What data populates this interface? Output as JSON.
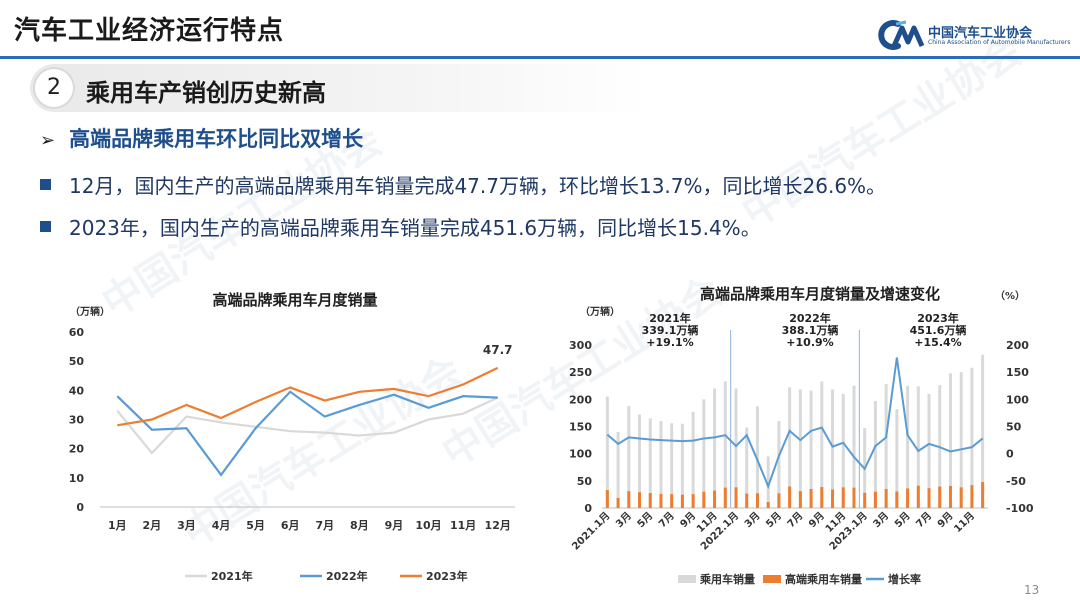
{
  "header": {
    "title": "汽车工业经济运行特点"
  },
  "logo": {
    "name_cn": "中国汽车工业协会",
    "name_en": "China Association of Automobile Manufacturers"
  },
  "section": {
    "number": "2",
    "title": "乘用车产销创历史新高"
  },
  "subheading": "高端品牌乘用车环比同比双增长",
  "bullets": [
    "12月，国内生产的高端品牌乘用车销量完成47.7万辆，环比增长13.7%，同比增长26.6%。",
    "2023年，国内生产的高端品牌乘用车销量完成451.6万辆，同比增长15.4%。"
  ],
  "watermark": "中国汽车工业协会",
  "page_number": "13",
  "colors": {
    "s2021": "#d9d9d9",
    "s2022": "#5b9bd5",
    "s2023": "#ed7d31",
    "total_bar": "#d9d9d9",
    "premium_bar": "#ed7d31",
    "growth_line": "#5b9bd5"
  },
  "chart_data": [
    {
      "type": "line",
      "title": "高端品牌乘用车月度销量",
      "ylabel": "（万辆）",
      "ylim": [
        0,
        60
      ],
      "yticks": [
        0,
        10,
        20,
        30,
        40,
        50,
        60
      ],
      "categories": [
        "1月",
        "2月",
        "3月",
        "4月",
        "5月",
        "6月",
        "7月",
        "8月",
        "9月",
        "10月",
        "11月",
        "12月"
      ],
      "series": [
        {
          "name": "2021年",
          "values": [
            33,
            18.5,
            31,
            29,
            27.5,
            26,
            25.5,
            24.5,
            25.5,
            30,
            32,
            37.5
          ]
        },
        {
          "name": "2022年",
          "values": [
            38,
            26.5,
            27,
            11,
            27,
            39.5,
            31,
            35,
            38.5,
            34,
            38,
            37.5
          ]
        },
        {
          "name": "2023年",
          "values": [
            28,
            30,
            35,
            30.5,
            36,
            41,
            36.5,
            39.5,
            40.5,
            38,
            42,
            47.7
          ]
        }
      ],
      "data_labels": [
        {
          "series": "2023年",
          "category": "12月",
          "text": "47.7"
        }
      ],
      "legend": "bottom"
    },
    {
      "type": "bar",
      "title": "高端品牌乘用车月度销量及增速变化",
      "ylabel": "（万辆）",
      "y2label": "（%）",
      "ylim": [
        0,
        300
      ],
      "yticks": [
        0,
        50,
        100,
        150,
        200,
        250,
        300
      ],
      "y2lim": [
        -100,
        200
      ],
      "y2ticks": [
        -100,
        -50,
        0,
        50,
        100,
        150,
        200
      ],
      "tick_labels": [
        "2021.1月",
        "3月",
        "5月",
        "7月",
        "9月",
        "11月",
        "2022.1月",
        "3月",
        "5月",
        "7月",
        "9月",
        "11月",
        "2023.1月",
        "3月",
        "5月",
        "7月",
        "9月",
        "11月"
      ],
      "x": [
        "2021.1",
        "2021.2",
        "2021.3",
        "2021.4",
        "2021.5",
        "2021.6",
        "2021.7",
        "2021.8",
        "2021.9",
        "2021.10",
        "2021.11",
        "2021.12",
        "2022.1",
        "2022.2",
        "2022.3",
        "2022.4",
        "2022.5",
        "2022.6",
        "2022.7",
        "2022.8",
        "2022.9",
        "2022.10",
        "2022.11",
        "2022.12",
        "2023.1",
        "2023.2",
        "2023.3",
        "2023.4",
        "2023.5",
        "2023.6",
        "2023.7",
        "2023.8",
        "2023.9",
        "2023.10",
        "2023.11",
        "2023.12"
      ],
      "series": [
        {
          "name": "乘用车销量",
          "kind": "bar",
          "values": [
            205,
            140,
            188,
            172,
            165,
            160,
            156,
            155,
            177,
            200,
            220,
            233,
            220,
            148,
            187,
            95,
            160,
            222,
            218,
            216,
            233,
            218,
            210,
            225,
            147,
            197,
            228,
            182,
            225,
            224,
            210,
            226,
            248,
            250,
            258,
            282
          ]
        },
        {
          "name": "高端乘用车销量",
          "kind": "bar",
          "values": [
            33,
            18.5,
            31,
            29,
            27.5,
            26,
            25.5,
            24.5,
            25.5,
            30,
            32,
            37.5,
            38,
            26.5,
            27,
            11,
            27,
            39.5,
            31,
            35,
            38.5,
            34,
            38,
            37.5,
            28,
            30,
            35,
            30.5,
            36,
            41,
            36.5,
            39.5,
            40.5,
            38,
            42,
            47.7
          ]
        },
        {
          "name": "增长率",
          "kind": "line",
          "axis": "right",
          "values": [
            35,
            18,
            30,
            28,
            26,
            25,
            24,
            23,
            24,
            28,
            30,
            34,
            14,
            34,
            -12,
            -60,
            -4,
            42,
            25,
            42,
            48,
            13,
            20,
            -6,
            -28,
            14,
            30,
            177,
            34,
            5,
            18,
            12,
            4,
            8,
            12,
            28
          ]
        }
      ],
      "annotations": [
        {
          "line1": "2021年",
          "line2": "339.1万辆",
          "line3": "+19.1%"
        },
        {
          "line1": "2022年",
          "line2": "388.1万辆",
          "line3": "+10.9%"
        },
        {
          "line1": "2023年",
          "line2": "451.6万辆",
          "line3": "+15.4%"
        }
      ],
      "legend": "bottom"
    }
  ]
}
